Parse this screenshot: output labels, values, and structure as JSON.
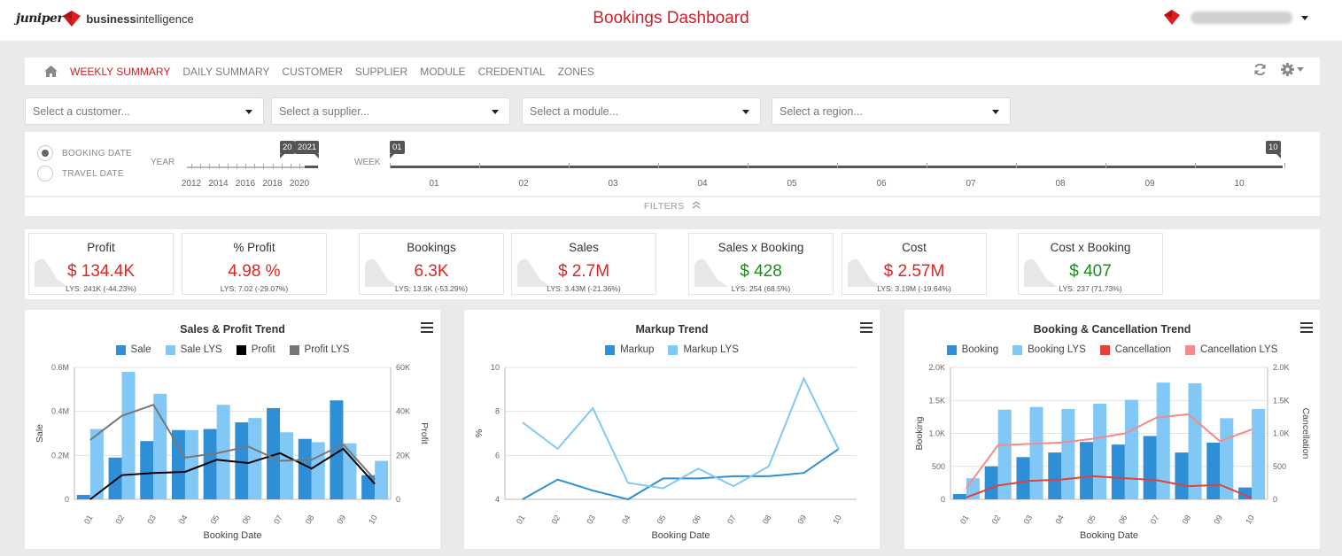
{
  "header": {
    "logo_brand": "juniper",
    "logo_product_bold": "business",
    "logo_product_rest": "intelligence",
    "title": "Bookings Dashboard",
    "user_menu_icon": "caret-down-icon"
  },
  "nav": {
    "items": [
      {
        "label": "WEEKLY SUMMARY",
        "active": true
      },
      {
        "label": "DAILY SUMMARY",
        "active": false
      },
      {
        "label": "CUSTOMER",
        "active": false
      },
      {
        "label": "SUPPLIER",
        "active": false
      },
      {
        "label": "MODULE",
        "active": false
      },
      {
        "label": "CREDENTIAL",
        "active": false
      },
      {
        "label": "ZONES",
        "active": false
      }
    ],
    "icons": [
      "home-icon",
      "refresh-icon",
      "gear-icon"
    ]
  },
  "selects": [
    {
      "placeholder": "Select a customer..."
    },
    {
      "placeholder": "Select a supplier..."
    },
    {
      "placeholder": "Select a module..."
    },
    {
      "placeholder": "Select a region..."
    }
  ],
  "date_filter": {
    "options": [
      {
        "label": "BOOKING DATE",
        "selected": true
      },
      {
        "label": "TRAVEL DATE",
        "selected": false
      }
    ],
    "year_label": "YEAR",
    "year_ticks": [
      "2012",
      "2014",
      "2016",
      "2018",
      "2020"
    ],
    "year_handles": [
      "20",
      "2021"
    ],
    "week_label": "WEEK",
    "week_ticks": [
      "01",
      "02",
      "03",
      "04",
      "05",
      "06",
      "07",
      "08",
      "09",
      "10"
    ],
    "week_handles": [
      "01",
      "10"
    ]
  },
  "filters_label": "FILTERS",
  "kpis": [
    {
      "title": "Profit",
      "value": "$ 134.4K",
      "lys": "LYS: 241K (-44.23%)",
      "color": "#e02424"
    },
    {
      "title": "% Profit",
      "value": "4.98 %",
      "lys": "LYS: 7.02 (-29.07%)",
      "color": "#e02424"
    },
    {
      "title": "Bookings",
      "value": "6.3K",
      "lys": "LYS: 13.5K (-53.29%)",
      "color": "#e02424"
    },
    {
      "title": "Sales",
      "value": "$ 2.7M",
      "lys": "LYS: 3.43M (-21.36%)",
      "color": "#e02424"
    },
    {
      "title": "Sales x Booking",
      "value": "$ 428",
      "lys": "LYS: 254 (68.5%)",
      "color": "#1e8a1e"
    },
    {
      "title": "Cost",
      "value": "$ 2.57M",
      "lys": "LYS: 3.19M (-19.64%)",
      "color": "#e02424"
    },
    {
      "title": "Cost x Booking",
      "value": "$ 407",
      "lys": "LYS: 237 (71.73%)",
      "color": "#1e8a1e"
    }
  ],
  "chart_data": [
    {
      "type": "bar",
      "title": "Sales & Profit Trend",
      "categories": [
        "01",
        "02",
        "03",
        "04",
        "05",
        "06",
        "07",
        "08",
        "09",
        "10"
      ],
      "xlabel": "Booking Date",
      "ylabel": "Sale",
      "ylabel_right": "Profit",
      "ylim": [
        0,
        600000
      ],
      "ylim_right": [
        0,
        60000
      ],
      "yticks": [
        "0",
        "0.2M",
        "0.4M",
        "0.6M"
      ],
      "yticks_right": [
        "0",
        "20K",
        "40K",
        "60K"
      ],
      "series": [
        {
          "name": "Sale",
          "type": "bar",
          "axis": "left",
          "color": "#2f8fd6",
          "values": [
            20000,
            190000,
            265000,
            315000,
            320000,
            350000,
            415000,
            275000,
            450000,
            110000
          ]
        },
        {
          "name": "Sale LYS",
          "type": "bar",
          "axis": "left",
          "color": "#82c8f7",
          "values": [
            320000,
            580000,
            480000,
            315000,
            430000,
            370000,
            305000,
            260000,
            255000,
            175000
          ]
        },
        {
          "name": "Profit",
          "type": "line",
          "axis": "right",
          "color": "#000000",
          "values": [
            0,
            11000,
            12000,
            12500,
            18000,
            16500,
            21000,
            14000,
            23000,
            7000
          ]
        },
        {
          "name": "Profit LYS",
          "type": "line",
          "axis": "right",
          "color": "#777777",
          "values": [
            27000,
            38000,
            43000,
            19000,
            21000,
            24000,
            17500,
            18000,
            25000,
            9000
          ]
        }
      ],
      "legend": "top",
      "grid": true
    },
    {
      "type": "line",
      "title": "Markup Trend",
      "categories": [
        "01",
        "02",
        "03",
        "04",
        "05",
        "06",
        "07",
        "08",
        "09",
        "10"
      ],
      "xlabel": "Booking Date",
      "ylabel": "%",
      "ylim": [
        4,
        10
      ],
      "yticks": [
        "4",
        "6",
        "8",
        "10"
      ],
      "series": [
        {
          "name": "Markup",
          "color": "#2f8fd6",
          "values": [
            4.0,
            4.9,
            4.4,
            4.0,
            4.95,
            4.95,
            5.05,
            5.05,
            5.2,
            6.3
          ]
        },
        {
          "name": "Markup LYS",
          "color": "#82c8f7",
          "values": [
            7.5,
            6.3,
            8.15,
            4.75,
            4.5,
            5.4,
            4.6,
            5.5,
            9.5,
            6.25
          ]
        }
      ],
      "legend": "top",
      "grid": true
    },
    {
      "type": "bar",
      "title": "Booking & Cancellation Trend",
      "categories": [
        "01",
        "02",
        "03",
        "04",
        "05",
        "06",
        "07",
        "08",
        "09",
        "10"
      ],
      "xlabel": "Booking Date",
      "ylabel": "Booking",
      "ylabel_right": "Cancellation",
      "ylim": [
        0,
        2000
      ],
      "ylim_right": [
        0,
        2000
      ],
      "yticks": [
        "0",
        "500",
        "1.0K",
        "1.5K",
        "2.0K"
      ],
      "yticks_right": [
        "0",
        "500",
        "1.0K",
        "1.5K",
        "2.0K"
      ],
      "series": [
        {
          "name": "Booking",
          "type": "bar",
          "axis": "left",
          "color": "#2f8fd6",
          "values": [
            80,
            500,
            640,
            710,
            870,
            830,
            960,
            710,
            860,
            180
          ]
        },
        {
          "name": "Booking LYS",
          "type": "bar",
          "axis": "left",
          "color": "#82c8f7",
          "values": [
            320,
            1360,
            1400,
            1370,
            1450,
            1510,
            1770,
            1760,
            1230,
            1370
          ]
        },
        {
          "name": "Cancellation",
          "type": "line",
          "axis": "right",
          "color": "#e0413a",
          "values": [
            30,
            210,
            280,
            300,
            350,
            320,
            290,
            200,
            220,
            20
          ]
        },
        {
          "name": "Cancellation LYS",
          "type": "line",
          "axis": "right",
          "color": "#f58a8a",
          "values": [
            170,
            820,
            840,
            860,
            920,
            1000,
            1240,
            1290,
            880,
            1060
          ]
        }
      ],
      "legend": "top",
      "grid": true
    }
  ]
}
